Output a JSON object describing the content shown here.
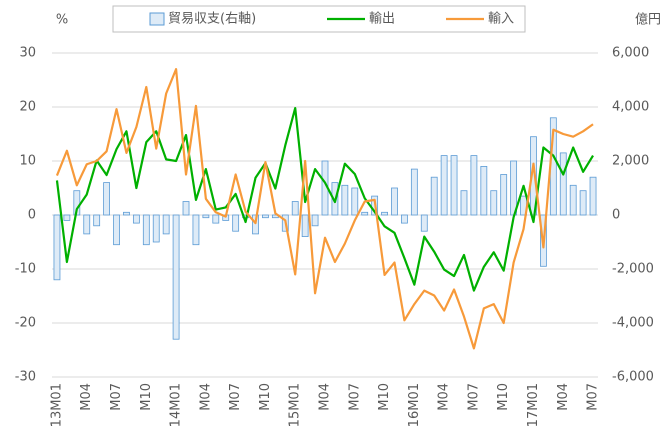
{
  "chart_data": {
    "type": "combo",
    "y_label": "%",
    "y2_label": "億円",
    "categories": [
      "13M01",
      null,
      null,
      "M04",
      null,
      null,
      "M07",
      null,
      null,
      "M10",
      null,
      null,
      "14M01",
      null,
      null,
      "M04",
      null,
      null,
      "M07",
      null,
      null,
      "M10",
      null,
      null,
      "15M01",
      null,
      null,
      "M04",
      null,
      null,
      "M07",
      null,
      null,
      "M10",
      null,
      null,
      "16M01",
      null,
      null,
      "M04",
      null,
      null,
      "M07",
      null,
      null,
      "M10",
      null,
      null,
      "17M01",
      null,
      null,
      "M04",
      null,
      null,
      "M07"
    ],
    "ylim": [
      -30,
      30
    ],
    "yticks": [
      -30,
      -20,
      -10,
      0,
      10,
      20,
      30
    ],
    "y2lim": [
      -6000,
      6000
    ],
    "y2ticks": [
      {
        "value": -6000,
        "label": "-6,000"
      },
      {
        "value": -4000,
        "label": "-4,000"
      },
      {
        "value": -2000,
        "label": "-2,000"
      },
      0,
      {
        "value": 2000,
        "label": "2,000"
      },
      {
        "value": 4000,
        "label": "4,000"
      },
      {
        "value": 6000,
        "label": "6,000"
      }
    ],
    "grid": true,
    "series": [
      {
        "name": "貿易収支(右軸)",
        "type": "bar",
        "axis": "y2",
        "color": "#deebf7",
        "edge_color": "#5b9bd5",
        "values": [
          -2400,
          -200,
          900,
          -700,
          -400,
          1200,
          -1100,
          100,
          -300,
          -1100,
          -1000,
          -700,
          -4600,
          500,
          -1100,
          -100,
          -300,
          -200,
          -600,
          -100,
          -700,
          -100,
          -100,
          -600,
          500,
          -800,
          -400,
          2000,
          1200,
          1100,
          1000,
          100,
          700,
          100,
          1000,
          -300,
          1700,
          -600,
          1400,
          2200,
          2200,
          900,
          2200,
          1800,
          900,
          1500,
          2000,
          700,
          2900,
          -1900,
          3600,
          2300,
          1100,
          900,
          1400
        ]
      },
      {
        "name": "輸出",
        "type": "line",
        "color": "#00b000",
        "values": [
          6.4,
          -8.7,
          1.1,
          3.8,
          10.1,
          7.4,
          12.2,
          15.5,
          5.0,
          13.5,
          15.5,
          10.3,
          10.0,
          14.8,
          2.8,
          8.5,
          1.0,
          1.4,
          3.9,
          -1.3,
          6.9,
          9.6,
          4.9,
          12.9,
          19.8,
          2.4,
          8.5,
          6.0,
          2.4,
          9.5,
          7.6,
          3.1,
          0.6,
          -2.1,
          -3.3,
          -8.0,
          -12.9,
          -4.0,
          -6.8,
          -10.1,
          -11.3,
          -7.4,
          -14.0,
          -9.6,
          -6.9,
          -10.3,
          -0.4,
          5.4,
          -1.3,
          12.5,
          11.0,
          7.5,
          12.5,
          8.0,
          11.0
        ]
      },
      {
        "name": "輸入",
        "type": "line",
        "color": "#f79a3a",
        "values": [
          7.3,
          11.9,
          5.5,
          9.4,
          10.0,
          11.8,
          19.6,
          11.5,
          16.3,
          23.7,
          12.3,
          22.5,
          27.0,
          7.5,
          20.2,
          3.0,
          0.5,
          -0.3,
          7.5,
          0.6,
          -1.5,
          9.8,
          0.3,
          -1.0,
          -11.0,
          10.0,
          -14.5,
          -4.2,
          -8.7,
          -5.3,
          -1.0,
          2.5,
          2.8,
          -11.1,
          -8.8,
          -19.5,
          -16.5,
          -14.0,
          -14.9,
          -17.7,
          -13.8,
          -18.8,
          -24.7,
          -17.3,
          -16.5,
          -20.0,
          -8.8,
          -2.6,
          9.5,
          -6.0,
          15.8,
          15.0,
          14.5,
          15.5,
          16.8
        ]
      }
    ]
  }
}
